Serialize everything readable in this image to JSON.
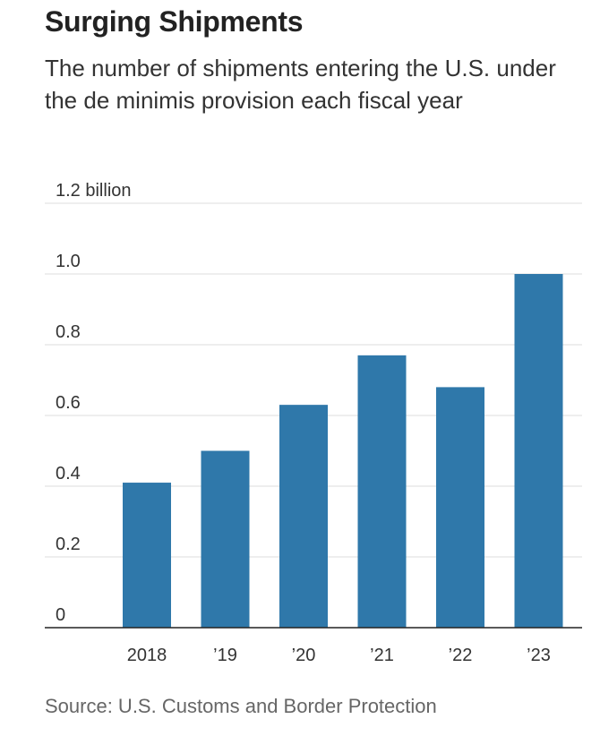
{
  "chart_data": {
    "type": "bar",
    "title": "Surging Shipments",
    "subtitle": "The number of shipments entering the U.S. under the de minimis provision each fiscal year",
    "categories": [
      "2018",
      "’19",
      "’20",
      "’21",
      "’22",
      "’23"
    ],
    "values": [
      0.41,
      0.5,
      0.63,
      0.77,
      0.68,
      1.0
    ],
    "ylim": [
      0,
      1.2
    ],
    "yticks": [
      0,
      0.2,
      0.4,
      0.6,
      0.8,
      1.0,
      1.2
    ],
    "ytick_labels": [
      "0",
      "0.2",
      "0.4",
      "0.6",
      "0.8",
      "1.0",
      "1.2 billion"
    ],
    "grid": true,
    "bar_color": "#2f78aa",
    "source": "Source: U.S. Customs and Border Protection"
  }
}
